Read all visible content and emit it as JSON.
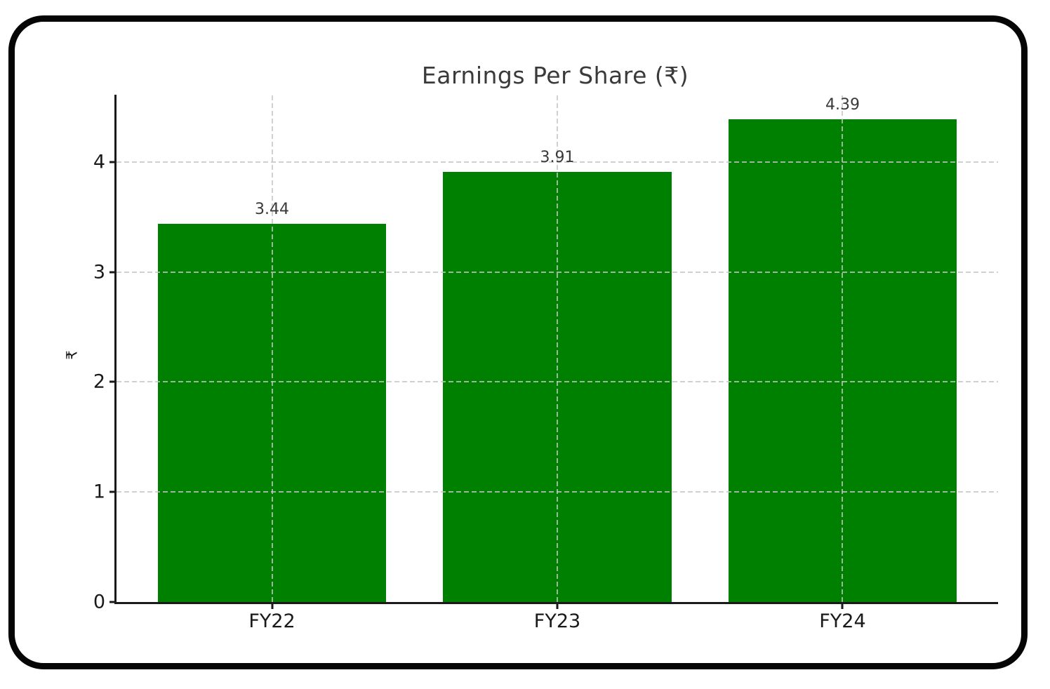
{
  "frame": {
    "border_color": "#050505",
    "background": "#ffffff"
  },
  "chart_data": {
    "type": "bar",
    "title": "Earnings Per Share (₹)",
    "categories": [
      "FY22",
      "FY23",
      "FY24"
    ],
    "values": [
      3.44,
      3.91,
      4.39
    ],
    "value_labels": [
      "3.44",
      "3.91",
      "4.39"
    ],
    "xlabel": "",
    "ylabel": "₹",
    "yticks": [
      0,
      1,
      2,
      3,
      4
    ],
    "ylim": [
      0,
      4.61
    ],
    "xlim": [
      -0.545,
      2.545
    ],
    "bar_width_units": 0.8,
    "bar_color": "#008000",
    "grid": true,
    "grid_style": "dashed",
    "grid_color": "#c4c4c4",
    "legend_position": "none",
    "title_color": "#3a3a3a",
    "tick_color": "#1a1a1a",
    "value_label_color": "#3a3a3a"
  }
}
